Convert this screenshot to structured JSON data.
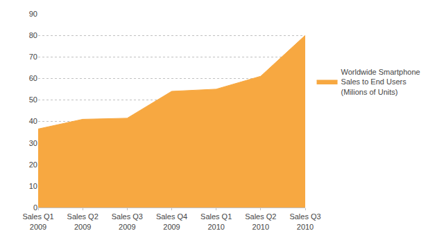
{
  "chart_data": {
    "type": "area",
    "categories": [
      "Sales Q1\n2009",
      "Sales Q2\n2009",
      "Sales Q3\n2009",
      "Sales Q4\n2009",
      "Sales Q1\n2010",
      "Sales Q2\n2010",
      "Sales Q3\n2010"
    ],
    "series": [
      {
        "name": "Worldwide Smartphone\nSales to End Users\n(Milions of Units)",
        "color": "#F7A841",
        "values": [
          36.5,
          41.0,
          41.5,
          54.0,
          55.0,
          61.0,
          80.0
        ]
      }
    ],
    "ylim": [
      0,
      90
    ],
    "yticks": [
      0,
      10,
      20,
      30,
      40,
      50,
      60,
      70,
      80,
      90
    ],
    "grid": true,
    "legend": "right"
  }
}
